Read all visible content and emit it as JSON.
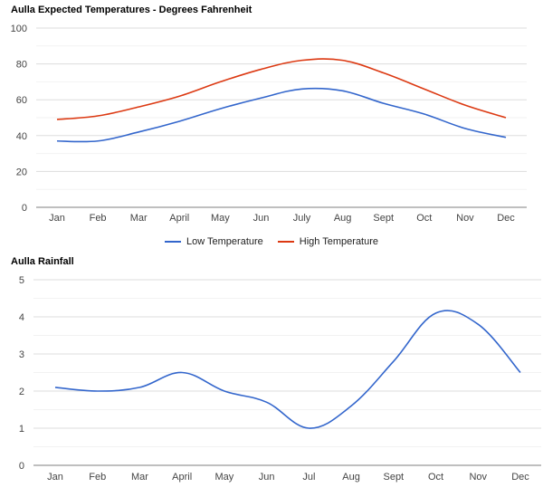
{
  "chart_data": [
    {
      "type": "line",
      "title": "Aulla Expected Temperatures - Degrees Fahrenheit",
      "categories": [
        "Jan",
        "Feb",
        "Mar",
        "April",
        "May",
        "Jun",
        "July",
        "Aug",
        "Sept",
        "Oct",
        "Nov",
        "Dec"
      ],
      "ylim": [
        0,
        100
      ],
      "yticks": [
        "0",
        "20",
        "40",
        "60",
        "80",
        "100"
      ],
      "grid": true,
      "legend": "bottom",
      "series": [
        {
          "name": "Low Temperature",
          "color": "#3366cc",
          "values": [
            37,
            37,
            42,
            48,
            55,
            61,
            66,
            65,
            58,
            52,
            44,
            39
          ]
        },
        {
          "name": "High Temperature",
          "color": "#dc3912",
          "values": [
            49,
            51,
            56,
            62,
            70,
            77,
            82,
            82,
            75,
            66,
            57,
            50
          ]
        }
      ]
    },
    {
      "type": "line",
      "title": "Aulla Rainfall",
      "categories": [
        "Jan",
        "Feb",
        "Mar",
        "April",
        "May",
        "Jun",
        "Jul",
        "Aug",
        "Sept",
        "Oct",
        "Nov",
        "Dec"
      ],
      "ylim": [
        0,
        5
      ],
      "yticks": [
        "0",
        "1",
        "2",
        "3",
        "4",
        "5"
      ],
      "grid": true,
      "legend": "none",
      "series": [
        {
          "name": "Rainfall",
          "color": "#3366cc",
          "values": [
            2.1,
            2.0,
            2.1,
            2.5,
            2.0,
            1.7,
            1.0,
            1.6,
            2.8,
            4.1,
            3.8,
            2.5
          ]
        }
      ]
    }
  ]
}
